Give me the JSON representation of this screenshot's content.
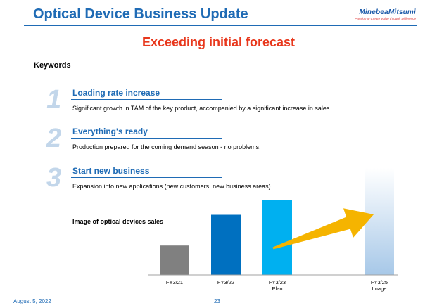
{
  "header": {
    "title": "Optical Device Business Update",
    "logo_name": "MinebeaMitsumi",
    "logo_tagline": "Passion to Create Value through Difference"
  },
  "subtitle": "Exceeding initial forecast",
  "keywords_label": "Keywords",
  "keywords": [
    {
      "number": "1",
      "title": "Loading rate increase",
      "description": "Significant growth in TAM of the key product, accompanied by a significant increase in sales."
    },
    {
      "number": "2",
      "title": "Everything's ready",
      "description": "Production prepared for the coming demand season - no problems."
    },
    {
      "number": "3",
      "title": "Start new business",
      "description": "Expansion into new applications (new customers, new business areas)."
    }
  ],
  "chart_data": {
    "type": "bar",
    "title": "Image of optical devices sales",
    "categories": [
      "FY3/21",
      "FY3/22",
      "FY3/23 Plan",
      "FY3/25 Image"
    ],
    "category_lines": [
      [
        "FY3/21"
      ],
      [
        "FY3/22"
      ],
      [
        "FY3/23",
        "Plan"
      ],
      [
        "FY3/25",
        "Image"
      ]
    ],
    "values": [
      2.2,
      4.5,
      5.6,
      8.0
    ],
    "colors": [
      "#808080",
      "#0070c0",
      "#00b0f0",
      "#b7d4ee"
    ],
    "gradient_last": true,
    "arrow_color": "#f5b400",
    "xlabel": "",
    "ylabel": "",
    "y_axis_visible": false,
    "grid": false
  },
  "footer": {
    "date": "August 5, 2022",
    "page": "23"
  }
}
